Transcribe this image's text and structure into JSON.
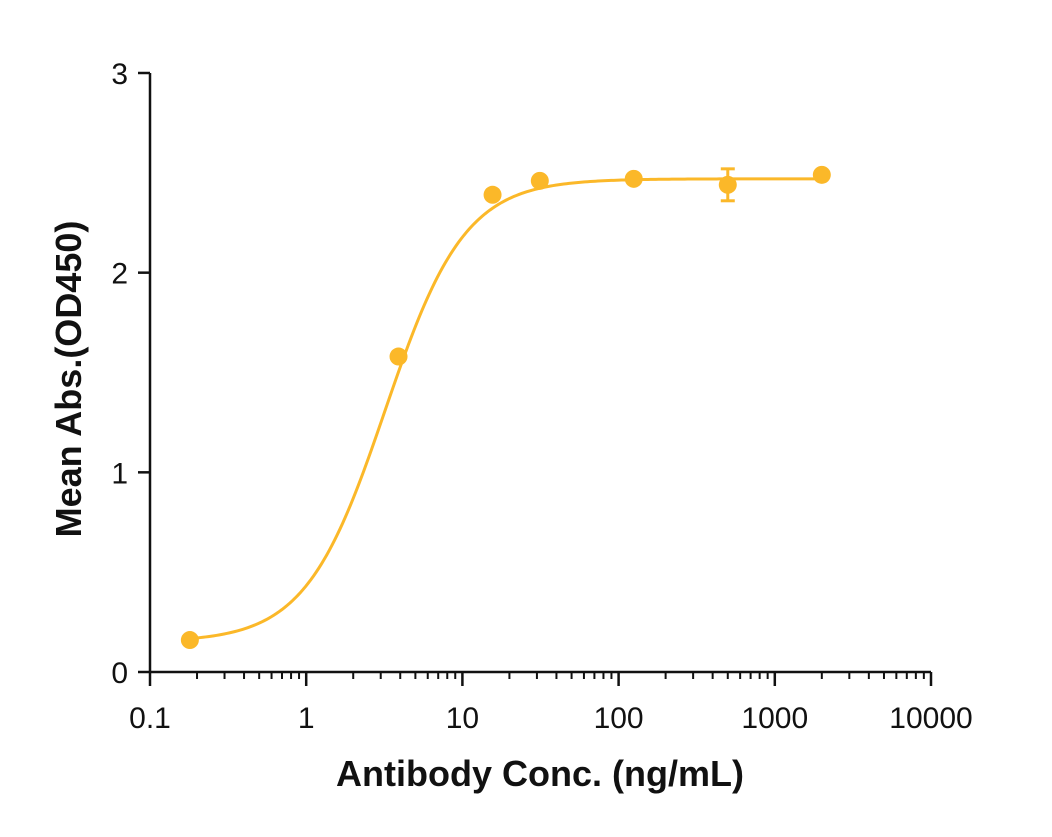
{
  "chart_data": {
    "type": "scatter",
    "xscale": "log",
    "xlabel": "Antibody Conc. (ng/mL)",
    "ylabel": "Mean Abs.(OD450)",
    "xlim": [
      0.1,
      10000
    ],
    "ylim": [
      0,
      3
    ],
    "xticks": [
      0.1,
      1,
      10,
      100,
      1000,
      10000
    ],
    "xtick_labels": [
      "0.1",
      "1",
      "10",
      "100",
      "1000",
      "10000"
    ],
    "yticks": [
      0,
      1,
      2,
      3
    ],
    "ytick_labels": [
      "0",
      "1",
      "2",
      "3"
    ],
    "grid": false,
    "legend": "none",
    "color": "#FBB829",
    "series": [
      {
        "x": [
          0.18,
          3.9,
          15.6,
          31.3,
          125,
          500,
          2000
        ],
        "y": [
          0.16,
          1.58,
          2.39,
          2.46,
          2.47,
          2.44,
          2.49
        ],
        "error": [
          0,
          0,
          0,
          0,
          0,
          0.08,
          0
        ]
      }
    ],
    "fit": {
      "model": "4PL",
      "bottom": 0.15,
      "top": 2.47,
      "ec50": 3.2,
      "hill": 1.7
    }
  }
}
